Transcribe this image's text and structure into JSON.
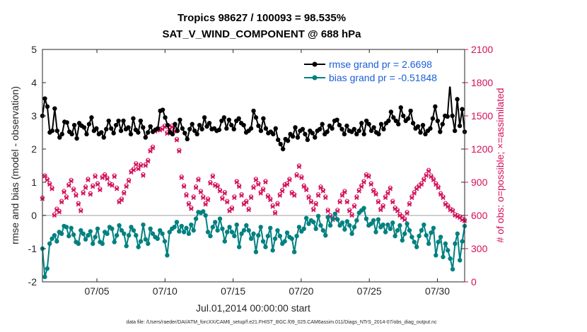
{
  "chart_data": {
    "type": "line",
    "title_line1": "Tropics 98627 / 100093 = 98.535%",
    "title_line2": "SAT_V_WIND_COMPONENT @ 688 hPa",
    "ylabel_left": "rmse and bias (model - observation)",
    "ylabel_right": "# of obs: o=possible; ×=assimilated",
    "xlabel": "Jul.01,2014 00:00:00 start",
    "footer": "data file: /Users/raeder/DAI/ATM_forcXX/CAM6_setup/f.e21.FHIST_BGC.f09_025.CAM6assim.011/Diags_NTrS_2014-07/obs_diag_output.nc",
    "x_range_days": [
      1,
      32
    ],
    "ylim_left": [
      -2,
      5
    ],
    "ylim_right": [
      0,
      2100
    ],
    "yticks_left": [
      "-2",
      "-1",
      "0",
      "1",
      "2",
      "3",
      "4",
      "5"
    ],
    "yticks_right": [
      "0",
      "300",
      "600",
      "900",
      "1200",
      "1500",
      "1800",
      "2100"
    ],
    "xticks": [
      {
        "day": 5,
        "label": "07/05"
      },
      {
        "day": 10,
        "label": "07/10"
      },
      {
        "day": 15,
        "label": "07/15"
      },
      {
        "day": 20,
        "label": "07/20"
      },
      {
        "day": 25,
        "label": "07/25"
      },
      {
        "day": 30,
        "label": "07/30"
      }
    ],
    "legend": {
      "position": "top-right",
      "entries": [
        "rmse grand pr = 2.6698",
        "bias grand pr = -0.51848"
      ]
    },
    "colors": {
      "rmse": "#000000",
      "bias": "#008080",
      "obs": "#d40f5a",
      "zero_line": "#bfbfbf"
    },
    "rmse": [
      3.0,
      3.52,
      3.28,
      2.5,
      2.55,
      3.22,
      2.55,
      2.35,
      2.45,
      2.82,
      2.8,
      2.52,
      2.45,
      2.72,
      2.32,
      2.78,
      2.7,
      2.65,
      2.45,
      2.75,
      2.95,
      2.55,
      2.62,
      2.45,
      2.5,
      2.35,
      2.6,
      2.85,
      2.62,
      2.48,
      2.72,
      2.85,
      2.55,
      2.85,
      2.6,
      2.65,
      2.45,
      2.92,
      2.58,
      2.5,
      2.85,
      2.65,
      2.35,
      2.5,
      2.68,
      2.52,
      2.58,
      2.62,
      3.15,
      3.18,
      2.95,
      2.72,
      2.5,
      2.45,
      2.75,
      2.55,
      2.88,
      2.62,
      2.48,
      2.3,
      2.6,
      2.75,
      2.55,
      2.45,
      2.72,
      2.6,
      2.95,
      2.68,
      2.78,
      2.6,
      2.62,
      2.55,
      2.58,
      2.85,
      2.95,
      2.62,
      2.88,
      2.72,
      2.6,
      2.85,
      2.92,
      2.78,
      2.72,
      2.5,
      2.55,
      2.62,
      3.15,
      2.95,
      2.7,
      2.55,
      2.92,
      2.62,
      2.48,
      2.52,
      2.45,
      2.62,
      2.28,
      2.15,
      2.0,
      2.3,
      2.25,
      2.45,
      2.38,
      2.65,
      2.35,
      2.55,
      2.6,
      2.45,
      2.28,
      2.55,
      2.48,
      2.35,
      2.55,
      2.6,
      2.75,
      2.45,
      2.52,
      2.7,
      2.62,
      2.85,
      2.88,
      2.72,
      2.6,
      2.45,
      2.7,
      2.55,
      2.52,
      2.6,
      2.45,
      2.55,
      2.78,
      2.45,
      2.85,
      2.75,
      2.55,
      2.65,
      2.5,
      2.45,
      2.75,
      2.6,
      2.78,
      2.85,
      3.12,
      2.95,
      2.85,
      2.75,
      3.25,
      3.0,
      2.85,
      2.92,
      3.15,
      2.78,
      2.62,
      2.68,
      2.5,
      2.72,
      2.45,
      2.55,
      2.62,
      2.92,
      3.28,
      2.85,
      2.52,
      2.75,
      3.0,
      2.98,
      3.95,
      3.0,
      2.55,
      3.5,
      2.7,
      3.2,
      2.52
    ],
    "bias": [
      -1.0,
      -1.85,
      -1.6,
      -0.85,
      -0.7,
      -0.6,
      -0.78,
      -0.5,
      -0.55,
      -0.32,
      -0.35,
      -0.62,
      -0.38,
      -0.58,
      -0.8,
      -0.85,
      -0.45,
      -0.55,
      -0.72,
      -0.6,
      -0.48,
      -0.85,
      -0.65,
      -0.4,
      -0.8,
      -0.85,
      -0.5,
      -0.55,
      -0.35,
      -0.4,
      -0.8,
      -0.6,
      -0.3,
      -0.45,
      -0.55,
      -0.92,
      -0.6,
      -0.35,
      -0.45,
      -0.6,
      -0.95,
      -0.78,
      -0.28,
      -0.72,
      -0.85,
      -0.4,
      -0.55,
      -0.65,
      -0.7,
      -0.45,
      -0.55,
      -0.78,
      -1.2,
      -0.5,
      -0.4,
      -0.35,
      -0.2,
      -0.48,
      -0.32,
      -0.5,
      -0.38,
      -0.55,
      -0.28,
      -0.45,
      -0.1,
      0.1,
      0.08,
      0.12,
      0.0,
      -0.5,
      -0.62,
      -0.35,
      -0.2,
      -0.45,
      -0.1,
      -0.4,
      -0.78,
      -0.5,
      -0.35,
      -0.5,
      -0.62,
      -0.28,
      -0.95,
      -0.55,
      -0.45,
      -0.3,
      -0.45,
      -0.7,
      -0.55,
      -1.1,
      -0.6,
      -0.35,
      -0.78,
      -0.95,
      -0.62,
      -0.38,
      -1.05,
      -0.7,
      -0.45,
      -0.62,
      -0.85,
      -0.78,
      -0.52,
      -0.65,
      -0.7,
      -1.1,
      -0.62,
      -0.35,
      -0.48,
      -0.4,
      -0.08,
      -0.25,
      -0.15,
      -0.2,
      -0.4,
      -0.02,
      -0.3,
      -0.45,
      -0.6,
      -0.05,
      -0.3,
      -0.1,
      0.05,
      -0.12,
      -0.3,
      -0.22,
      -0.42,
      -0.18,
      -0.3,
      -0.55,
      -0.35,
      -0.15,
      0.08,
      0.15,
      0.22,
      -0.1,
      -0.3,
      -0.25,
      -0.15,
      -0.5,
      -0.12,
      -0.35,
      -0.28,
      -0.5,
      -0.28,
      -0.4,
      -0.22,
      -0.62,
      -0.45,
      -0.3,
      -0.75,
      -0.55,
      -0.25,
      -0.45,
      -0.65,
      -0.8,
      -0.95,
      -0.62,
      -0.45,
      -0.28,
      -0.6,
      -0.85,
      -0.52,
      -0.38,
      -1.2,
      -0.8,
      -0.65,
      -1.25,
      -0.85,
      -1.05,
      -1.3,
      -1.62,
      -0.85,
      -0.55,
      -1.35,
      -0.78,
      -0.32
    ],
    "obs_assimilated": [
      750,
      955,
      920,
      880,
      840,
      600,
      650,
      630,
      720,
      810,
      760,
      870,
      910,
      830,
      780,
      700,
      640,
      800,
      850,
      920,
      790,
      860,
      950,
      880,
      830,
      940,
      960,
      930,
      880,
      870,
      950,
      840,
      720,
      740,
      800,
      860,
      910,
      990,
      1010,
      1060,
      1020,
      1050,
      960,
      1050,
      1090,
      1180,
      1210,
      1360,
      1370,
      1370,
      1380,
      1400,
      1340,
      1380,
      1400,
      1360,
      1280,
      1180,
      940,
      860,
      780,
      700,
      660,
      760,
      850,
      920,
      810,
      760,
      700,
      740,
      890,
      950,
      870,
      860,
      820,
      750,
      800,
      720,
      640,
      660,
      760,
      900,
      860,
      780,
      700,
      720,
      650,
      760,
      850,
      920,
      880,
      800,
      830,
      900,
      770,
      740,
      680,
      620,
      700,
      780,
      820,
      870,
      880,
      920,
      800,
      780,
      960,
      1040,
      940,
      860,
      830,
      760,
      720,
      650,
      700,
      780,
      850,
      820,
      760,
      640,
      590,
      560,
      570,
      640,
      720,
      780,
      810,
      720,
      640,
      600,
      680,
      760,
      820,
      860,
      900,
      960,
      950,
      880,
      820,
      790,
      720,
      650,
      680,
      760,
      800,
      840,
      720,
      660,
      640,
      600,
      580,
      560,
      620,
      700,
      760,
      800,
      840,
      860,
      880,
      920,
      960,
      1000,
      950,
      920,
      880,
      850,
      790,
      760,
      700,
      680,
      650,
      640,
      600,
      590,
      580,
      560,
      550
    ],
    "obs_possible": [
      760,
      960,
      930,
      890,
      850,
      610,
      660,
      640,
      730,
      820,
      770,
      880,
      920,
      840,
      790,
      710,
      650,
      810,
      860,
      930,
      800,
      870,
      960,
      890,
      840,
      950,
      970,
      940,
      890,
      880,
      960,
      850,
      730,
      750,
      810,
      870,
      920,
      1000,
      1020,
      1070,
      1030,
      1060,
      970,
      1060,
      1100,
      1190,
      1220,
      1370,
      1380,
      1380,
      1390,
      1410,
      1350,
      1390,
      1410,
      1370,
      1290,
      1190,
      950,
      870,
      790,
      710,
      670,
      770,
      860,
      930,
      820,
      770,
      710,
      750,
      900,
      960,
      880,
      870,
      830,
      760,
      810,
      730,
      650,
      670,
      770,
      910,
      870,
      790,
      710,
      730,
      660,
      770,
      860,
      930,
      890,
      810,
      840,
      910,
      780,
      750,
      690,
      630,
      710,
      790,
      830,
      880,
      890,
      930,
      810,
      790,
      970,
      1050,
      950,
      870,
      840,
      770,
      730,
      660,
      710,
      790,
      860,
      830,
      770,
      650,
      600,
      570,
      580,
      650,
      730,
      790,
      820,
      730,
      650,
      610,
      690,
      770,
      830,
      870,
      910,
      970,
      960,
      890,
      830,
      800,
      730,
      660,
      690,
      770,
      810,
      850,
      730,
      670,
      650,
      610,
      590,
      570,
      630,
      710,
      770,
      810,
      850,
      870,
      890,
      930,
      970,
      1010,
      960,
      930,
      890,
      860,
      800,
      770,
      710,
      690,
      660,
      650,
      610,
      600,
      590,
      570,
      560
    ]
  }
}
